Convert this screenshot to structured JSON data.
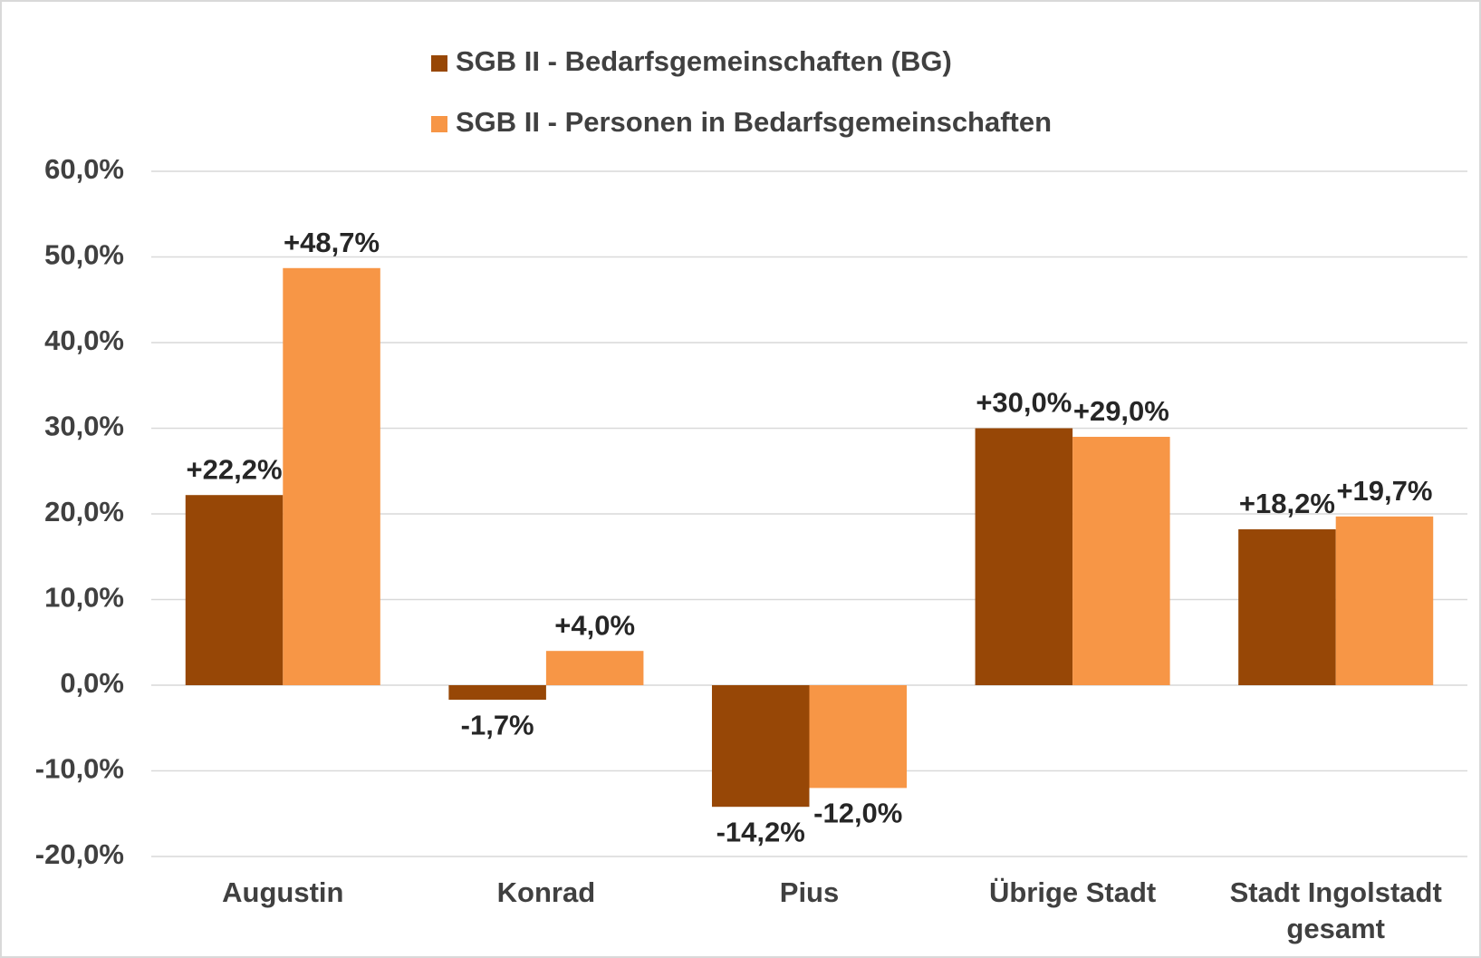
{
  "chart_data": {
    "type": "bar",
    "categories": [
      "Augustin",
      "Konrad",
      "Pius",
      "Übrige Stadt",
      "Stadt Ingolstadt gesamt"
    ],
    "series": [
      {
        "name": "SGB II - Bedarfsgemeinschaften (BG)",
        "color": "#974706",
        "values": [
          22.2,
          -1.7,
          -14.2,
          30.0,
          18.2
        ],
        "value_labels": [
          "+22,2%",
          "-1,7%",
          "-14,2%",
          "+30,0%",
          "+18,2%"
        ]
      },
      {
        "name": "SGB II - Personen in Bedarfsgemeinschaften",
        "color": "#f79646",
        "values": [
          48.7,
          4.0,
          -12.0,
          29.0,
          19.7
        ],
        "value_labels": [
          "+48,7%",
          "+4,0%",
          "-12,0%",
          "+29,0%",
          "+19,7%"
        ]
      }
    ],
    "ylim": [
      -20,
      60
    ],
    "yticks": [
      {
        "value": -20,
        "label": "-20,0%"
      },
      {
        "value": -10,
        "label": "-10,0%"
      },
      {
        "value": 0,
        "label": "0,0%"
      },
      {
        "value": 10,
        "label": "10,0%"
      },
      {
        "value": 20,
        "label": "20,0%"
      },
      {
        "value": 30,
        "label": "30,0%"
      },
      {
        "value": 40,
        "label": "40,0%"
      },
      {
        "value": 50,
        "label": "50,0%"
      },
      {
        "value": 60,
        "label": "60,0%"
      }
    ],
    "grid": true,
    "legend": "top"
  }
}
